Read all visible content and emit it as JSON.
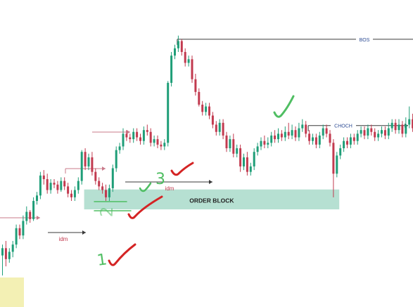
{
  "chart_data": {
    "type": "candlestick",
    "colors": {
      "up": "#1f9e78",
      "down": "#c23a4f",
      "order_block": "#b6e0d2",
      "structure_line": "#3a3a3a",
      "idm_line": "#c97a8a",
      "mark_red": "#d42424",
      "mark_green": "#4fbe62",
      "highlight": "#f3f0b4"
    },
    "candles": [
      [
        32,
        40,
        10,
        44
      ],
      [
        40,
        28,
        20,
        48
      ],
      [
        28,
        36,
        24,
        40
      ],
      [
        36,
        44,
        30,
        48
      ],
      [
        44,
        62,
        40,
        66
      ],
      [
        62,
        54,
        50,
        66
      ],
      [
        54,
        70,
        50,
        76
      ],
      [
        70,
        80,
        66,
        86
      ],
      [
        80,
        72,
        68,
        82
      ],
      [
        72,
        92,
        70,
        96
      ],
      [
        92,
        98,
        88,
        102
      ],
      [
        98,
        120,
        94,
        124
      ],
      [
        120,
        116,
        110,
        126
      ],
      [
        116,
        104,
        100,
        122
      ],
      [
        104,
        112,
        100,
        116
      ],
      [
        112,
        110,
        106,
        116
      ],
      [
        110,
        104,
        100,
        114
      ],
      [
        104,
        114,
        102,
        118
      ],
      [
        114,
        108,
        104,
        118
      ],
      [
        108,
        100,
        96,
        112
      ],
      [
        100,
        96,
        92,
        104
      ],
      [
        96,
        104,
        92,
        108
      ],
      [
        104,
        114,
        100,
        118
      ],
      [
        114,
        146,
        110,
        148
      ],
      [
        146,
        130,
        126,
        150
      ],
      [
        130,
        140,
        126,
        144
      ],
      [
        140,
        124,
        120,
        146
      ],
      [
        124,
        114,
        110,
        128
      ],
      [
        114,
        108,
        104,
        118
      ],
      [
        108,
        104,
        100,
        112
      ],
      [
        104,
        96,
        92,
        110
      ],
      [
        96,
        106,
        92,
        110
      ],
      [
        106,
        128,
        102,
        132
      ],
      [
        128,
        148,
        124,
        152
      ],
      [
        148,
        152,
        144,
        156
      ],
      [
        152,
        166,
        148,
        172
      ],
      [
        166,
        162,
        158,
        170
      ],
      [
        162,
        160,
        156,
        166
      ],
      [
        160,
        168,
        156,
        172
      ],
      [
        168,
        162,
        158,
        172
      ],
      [
        162,
        158,
        154,
        166
      ],
      [
        158,
        170,
        154,
        174
      ],
      [
        170,
        168,
        164,
        176
      ],
      [
        168,
        156,
        152,
        172
      ],
      [
        156,
        160,
        152,
        164
      ],
      [
        160,
        154,
        150,
        164
      ],
      [
        154,
        152,
        148,
        158
      ],
      [
        152,
        156,
        148,
        160
      ],
      [
        156,
        222,
        152,
        224
      ],
      [
        222,
        252,
        218,
        256
      ],
      [
        252,
        260,
        248,
        264
      ],
      [
        260,
        268,
        256,
        274
      ],
      [
        268,
        256,
        252,
        270
      ],
      [
        256,
        244,
        240,
        260
      ],
      [
        244,
        248,
        240,
        252
      ],
      [
        248,
        226,
        222,
        252
      ],
      [
        226,
        212,
        208,
        232
      ],
      [
        212,
        198,
        196,
        216
      ],
      [
        198,
        190,
        186,
        202
      ],
      [
        190,
        196,
        186,
        200
      ],
      [
        196,
        186,
        182,
        200
      ],
      [
        186,
        176,
        172,
        190
      ],
      [
        176,
        168,
        164,
        180
      ],
      [
        168,
        178,
        164,
        182
      ],
      [
        178,
        164,
        160,
        182
      ],
      [
        164,
        150,
        146,
        168
      ],
      [
        150,
        160,
        146,
        164
      ],
      [
        160,
        144,
        140,
        166
      ],
      [
        144,
        150,
        140,
        154
      ],
      [
        150,
        130,
        124,
        154
      ],
      [
        130,
        140,
        126,
        144
      ],
      [
        140,
        124,
        120,
        146
      ],
      [
        124,
        130,
        120,
        134
      ],
      [
        130,
        146,
        126,
        150
      ],
      [
        146,
        152,
        142,
        156
      ],
      [
        152,
        158,
        148,
        162
      ],
      [
        158,
        154,
        150,
        164
      ],
      [
        154,
        156,
        150,
        162
      ],
      [
        156,
        164,
        152,
        168
      ],
      [
        164,
        160,
        156,
        170
      ],
      [
        160,
        166,
        156,
        172
      ],
      [
        166,
        162,
        158,
        170
      ],
      [
        162,
        168,
        158,
        174
      ],
      [
        168,
        164,
        160,
        178
      ],
      [
        164,
        170,
        160,
        176
      ],
      [
        170,
        162,
        158,
        174
      ],
      [
        162,
        172,
        158,
        178
      ],
      [
        172,
        176,
        168,
        182
      ],
      [
        176,
        166,
        162,
        180
      ],
      [
        166,
        158,
        154,
        170
      ],
      [
        158,
        162,
        154,
        166
      ],
      [
        162,
        154,
        150,
        166
      ],
      [
        154,
        164,
        150,
        168
      ],
      [
        164,
        172,
        160,
        176
      ],
      [
        172,
        166,
        162,
        176
      ],
      [
        166,
        156,
        152,
        170
      ],
      [
        156,
        122,
        96,
        160
      ],
      [
        122,
        142,
        118,
        146
      ],
      [
        142,
        150,
        138,
        154
      ],
      [
        150,
        158,
        146,
        162
      ],
      [
        158,
        154,
        150,
        162
      ],
      [
        154,
        162,
        150,
        166
      ],
      [
        162,
        158,
        154,
        166
      ],
      [
        158,
        166,
        154,
        170
      ],
      [
        166,
        170,
        162,
        174
      ],
      [
        170,
        164,
        160,
        174
      ],
      [
        164,
        172,
        160,
        176
      ],
      [
        172,
        168,
        164,
        176
      ],
      [
        168,
        162,
        158,
        172
      ],
      [
        162,
        166,
        158,
        170
      ],
      [
        166,
        170,
        162,
        174
      ],
      [
        170,
        164,
        160,
        174
      ],
      [
        164,
        172,
        160,
        178
      ],
      [
        172,
        178,
        168,
        182
      ],
      [
        178,
        170,
        166,
        182
      ],
      [
        170,
        176,
        166,
        182
      ],
      [
        176,
        166,
        162,
        180
      ],
      [
        166,
        176,
        162,
        184
      ],
      [
        176,
        182,
        172,
        196
      ],
      [
        182,
        172,
        168,
        188
      ]
    ],
    "bos": {
      "label": "BOS",
      "level": 270,
      "from": 51
    },
    "choch": {
      "label": "CHOCH",
      "level": 175,
      "from": 89
    },
    "idm1": {
      "label": "idm",
      "level": 99,
      "from": 13
    },
    "idm2": {
      "label": "idm",
      "level": 120,
      "from": 31
    },
    "order_block": {
      "label": "ORDER BLOCK",
      "low": 92,
      "high": 100,
      "from": 24,
      "to": 98
    },
    "notes": {
      "one": "1",
      "two": "2",
      "three": "3"
    }
  }
}
